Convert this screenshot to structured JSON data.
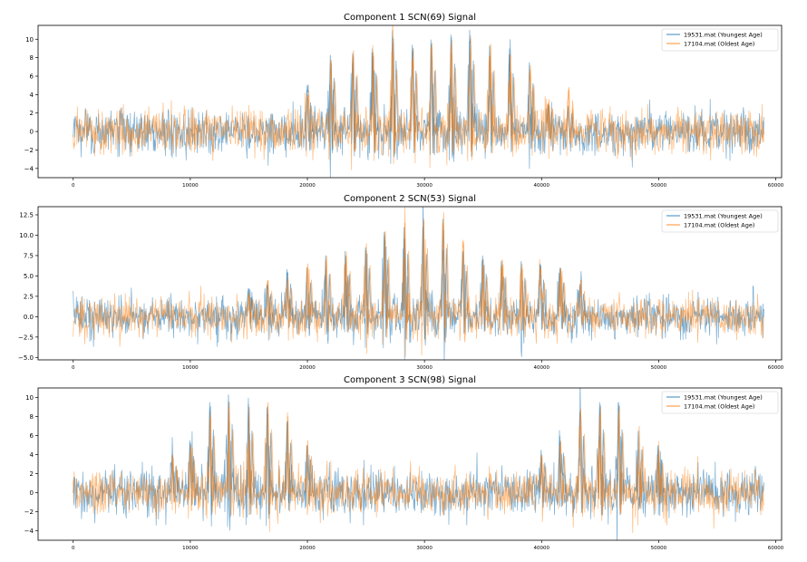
{
  "chart_data": [
    {
      "type": "line",
      "title": "Component 1 SCN(69) Signal",
      "xlabel": "",
      "ylabel": "",
      "xlim": [
        -3000,
        60500
      ],
      "ylim": [
        -5,
        11.5
      ],
      "x_ticks": [
        0,
        10000,
        20000,
        30000,
        40000,
        50000,
        60000
      ],
      "x_tick_labels": [
        "0",
        "10000",
        "20000",
        "30000",
        "40000",
        "50000",
        "60000"
      ],
      "y_ticks": [
        -4,
        -2,
        0,
        2,
        4,
        6,
        8,
        10
      ],
      "y_tick_labels": [
        "−4",
        "−2",
        "0",
        "2",
        "4",
        "6",
        "8",
        "10"
      ],
      "x_range": [
        0,
        59000
      ],
      "base_noise_amplitude": 2.2,
      "spike_positions": [
        20000,
        22000,
        23900,
        25600,
        27300,
        29000,
        30600,
        32300,
        33900,
        35600,
        37300,
        39000,
        40600,
        42300
      ],
      "series": [
        {
          "name": "19531.mat (Youngest Age)",
          "color": "#1f77b4",
          "spike_heights": [
            4.5,
            8.3,
            8.5,
            9.0,
            11.0,
            9.4,
            9.4,
            10.5,
            11.0,
            9.3,
            9.0,
            7.5,
            3.0,
            2.8
          ]
        },
        {
          "name": "17104.mat (Oldest Age)",
          "color": "#ff7f0e",
          "spike_heights": [
            4.0,
            7.8,
            8.8,
            8.6,
            9.6,
            9.0,
            9.6,
            9.9,
            10.4,
            9.5,
            8.4,
            7.2,
            3.5,
            4.8
          ]
        }
      ],
      "legend_location": "upper right"
    },
    {
      "type": "line",
      "title": "Component 2 SCN(53) Signal",
      "xlabel": "",
      "ylabel": "",
      "xlim": [
        -3000,
        60500
      ],
      "ylim": [
        -5.3,
        13.5
      ],
      "x_ticks": [
        0,
        10000,
        20000,
        30000,
        40000,
        50000,
        60000
      ],
      "x_tick_labels": [
        "0",
        "10000",
        "20000",
        "30000",
        "40000",
        "50000",
        "60000"
      ],
      "y_ticks": [
        -5.0,
        -2.5,
        0.0,
        2.5,
        5.0,
        7.5,
        10.0,
        12.5
      ],
      "y_tick_labels": [
        "−5.0",
        "−2.5",
        "0.0",
        "2.5",
        "5.0",
        "7.5",
        "10.0",
        "12.5"
      ],
      "x_range": [
        0,
        59000
      ],
      "base_noise_amplitude": 2.2,
      "spike_positions": [
        15000,
        16600,
        18300,
        20000,
        21600,
        23300,
        25000,
        26600,
        28300,
        29900,
        31600,
        33300,
        35000,
        36600,
        38300,
        39900,
        41600,
        43300
      ],
      "series": [
        {
          "name": "19531.mat (Youngest Age)",
          "color": "#1f77b4",
          "spike_heights": [
            3.5,
            4.0,
            5.8,
            6.0,
            7.5,
            7.5,
            8.5,
            10.0,
            11.0,
            11.0,
            12.0,
            8.0,
            7.5,
            6.8,
            6.8,
            6.5,
            6.0,
            4.0
          ]
        },
        {
          "name": "17104.mat (Oldest Age)",
          "color": "#ff7f0e",
          "spike_heights": [
            3.0,
            4.5,
            5.0,
            6.5,
            7.5,
            8.0,
            9.0,
            10.5,
            11.5,
            12.0,
            12.8,
            9.0,
            7.0,
            7.0,
            6.5,
            6.0,
            6.0,
            4.5
          ]
        }
      ],
      "legend_location": "upper right"
    },
    {
      "type": "line",
      "title": "Component 3 SCN(98) Signal",
      "xlabel": "",
      "ylabel": "",
      "xlim": [
        -3000,
        60500
      ],
      "ylim": [
        -5,
        11
      ],
      "x_ticks": [
        0,
        10000,
        20000,
        30000,
        40000,
        50000,
        60000
      ],
      "x_tick_labels": [
        "0",
        "10000",
        "20000",
        "30000",
        "40000",
        "50000",
        "60000"
      ],
      "y_ticks": [
        -4,
        -2,
        0,
        2,
        4,
        6,
        8,
        10
      ],
      "y_tick_labels": [
        "−4",
        "−2",
        "0",
        "2",
        "4",
        "6",
        "8",
        "10"
      ],
      "x_range": [
        0,
        59000
      ],
      "base_noise_amplitude": 2.2,
      "spike_positions": [
        8500,
        10000,
        11700,
        13300,
        15000,
        16600,
        18300,
        20000,
        40000,
        41600,
        43300,
        45000,
        46600,
        48300,
        50000
      ],
      "series": [
        {
          "name": "19531.mat (Youngest Age)",
          "color": "#1f77b4",
          "spike_heights": [
            4.0,
            5.5,
            9.5,
            10.3,
            9.3,
            9.0,
            7.5,
            5.0,
            4.5,
            6.0,
            8.5,
            9.5,
            9.5,
            6.5,
            5.0
          ]
        },
        {
          "name": "17104.mat (Oldest Age)",
          "color": "#ff7f0e",
          "spike_heights": [
            3.5,
            5.0,
            8.5,
            9.5,
            9.0,
            9.5,
            8.0,
            5.5,
            4.0,
            5.5,
            8.8,
            9.0,
            9.0,
            7.0,
            4.5
          ]
        }
      ],
      "legend_location": "upper right"
    }
  ]
}
